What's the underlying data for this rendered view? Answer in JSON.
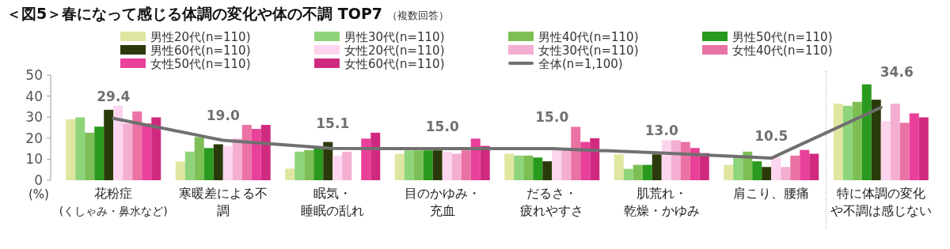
{
  "chart_data": {
    "type": "bar",
    "title": "＜図5＞春になって感じる体調の変化や体の不調 TOP7",
    "subtitle": "（複数回答）",
    "ylabel": "(%)",
    "categories": [
      "花粉症$_{(くしゃみ・鼻水など)}$",
      "寒暖差による不調",
      "眠気・睡眠の乱れ",
      "目のかゆみ・充血",
      "だるさ・疲れやすさ",
      "肌荒れ・乾燥・かゆみ",
      "肩こり、腰痛",
      "特に体調の変化や不調は感じない"
    ],
    "ylim": [
      0,
      50
    ],
    "yticks": [
      0,
      10,
      20,
      30,
      40,
      50
    ],
    "grid": false,
    "legend": "top",
    "series": [
      {
        "name": "男性20代(n=110)",
        "color": "#e0e6a0",
        "values": [
          29.0,
          8.9,
          5.5,
          12.6,
          12.6,
          12.3,
          7.3,
          36.4
        ]
      },
      {
        "name": "男性30代(n=110)",
        "color": "#8ed47a",
        "values": [
          29.9,
          13.6,
          13.6,
          14.2,
          11.7,
          5.4,
          10.7,
          35.4
        ]
      },
      {
        "name": "男性40代(n=110)",
        "color": "#7dbf55",
        "values": [
          22.6,
          20.5,
          14.3,
          14.2,
          11.7,
          7.3,
          13.6,
          37.3
        ]
      },
      {
        "name": "男性50代(n=110)",
        "color": "#2a9a1e",
        "values": [
          25.5,
          15.3,
          15.5,
          14.2,
          10.8,
          7.3,
          9.0,
          45.6
        ]
      },
      {
        "name": "男性60代(n=110)",
        "color": "#2a3a0a",
        "values": [
          33.5,
          17.1,
          18.2,
          14.2,
          9.0,
          12.3,
          6.3,
          38.3
        ]
      },
      {
        "name": "女性20代(n=110)",
        "color": "#fdd5ee",
        "values": [
          35.4,
          16.3,
          11.7,
          13.6,
          14.2,
          19.0,
          10.8,
          28.1
        ]
      },
      {
        "name": "女性30代(n=110)",
        "color": "#f4aed2",
        "values": [
          27.0,
          19.8,
          13.6,
          12.6,
          14.2,
          19.0,
          6.3,
          36.4
        ]
      },
      {
        "name": "女性40代(n=110)",
        "color": "#ea72a4",
        "values": [
          32.7,
          26.3,
          null,
          14.2,
          25.4,
          18.2,
          11.7,
          27.3
        ]
      },
      {
        "name": "女性50代(n=110)",
        "color": "#e9409a",
        "values": [
          27.0,
          24.4,
          19.8,
          19.8,
          18.2,
          15.3,
          14.4,
          31.8
        ]
      },
      {
        "name": "女性60代(n=110)",
        "color": "#d02a80",
        "values": [
          29.9,
          26.3,
          22.6,
          16.3,
          20.0,
          12.9,
          12.6,
          29.9
        ]
      },
      {
        "name": "全体(n=1,100)",
        "type": "line",
        "color": "#707070",
        "values": [
          29.4,
          19.0,
          15.1,
          15.0,
          15.0,
          13.0,
          10.5,
          34.6
        ],
        "value_labels": [
          "29.4",
          "19.0",
          "15.1",
          "15.0",
          "15.0",
          "13.0",
          "10.5",
          "34.6"
        ]
      }
    ]
  }
}
